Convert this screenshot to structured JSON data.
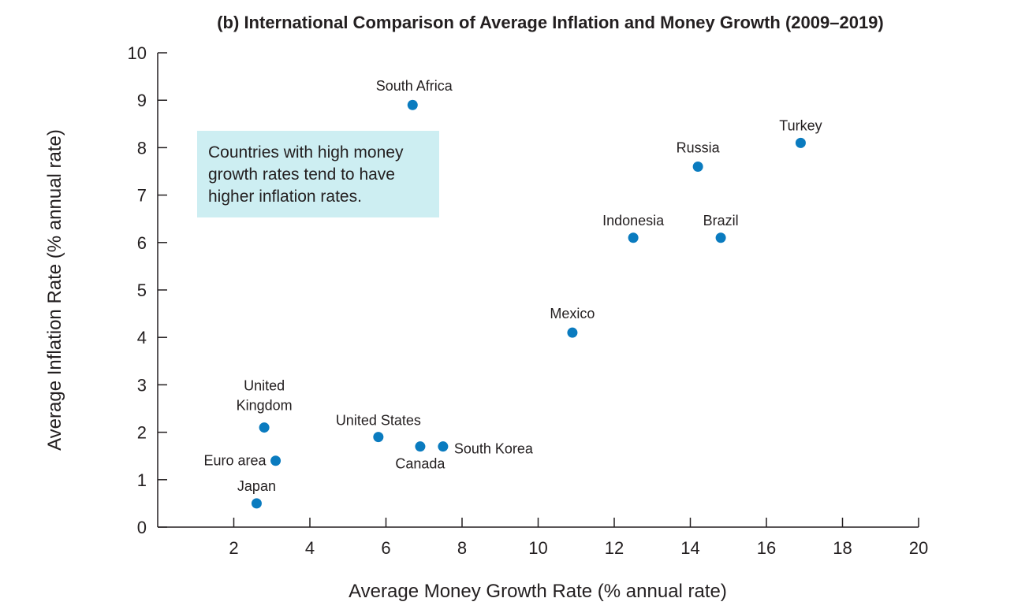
{
  "chart_data": {
    "type": "scatter",
    "title": "(b) International Comparison of Average Inflation and Money Growth (2009–2019)",
    "xlabel": "Average Money Growth Rate (% annual rate)",
    "ylabel": "Average Inflation Rate (% annual rate)",
    "xlim": [
      0,
      20
    ],
    "ylim": [
      0,
      10
    ],
    "x_ticks": [
      2,
      4,
      6,
      8,
      10,
      12,
      14,
      16,
      18,
      20
    ],
    "y_ticks": [
      0,
      1,
      2,
      3,
      4,
      5,
      6,
      7,
      8,
      9,
      10
    ],
    "grid": false,
    "point_color": "#0a7bbf",
    "note": {
      "lines": [
        "Countries with high money",
        "growth rates tend to have",
        "higher inflation rates."
      ],
      "background": "#cdeef2"
    },
    "points": [
      {
        "label": "South Africa",
        "x": 6.7,
        "y": 8.9
      },
      {
        "label": "Turkey",
        "x": 16.9,
        "y": 8.1
      },
      {
        "label": "Russia",
        "x": 14.2,
        "y": 7.6
      },
      {
        "label": "Indonesia",
        "x": 12.5,
        "y": 6.1
      },
      {
        "label": "Brazil",
        "x": 14.8,
        "y": 6.1
      },
      {
        "label": "Mexico",
        "x": 10.9,
        "y": 4.1
      },
      {
        "label": "United Kingdom",
        "x": 2.8,
        "y": 2.1
      },
      {
        "label": "United States",
        "x": 5.8,
        "y": 1.9
      },
      {
        "label": "Canada",
        "x": 6.9,
        "y": 1.7
      },
      {
        "label": "South Korea",
        "x": 7.5,
        "y": 1.7
      },
      {
        "label": "Euro area",
        "x": 3.1,
        "y": 1.4
      },
      {
        "label": "Japan",
        "x": 2.6,
        "y": 0.5
      }
    ]
  }
}
